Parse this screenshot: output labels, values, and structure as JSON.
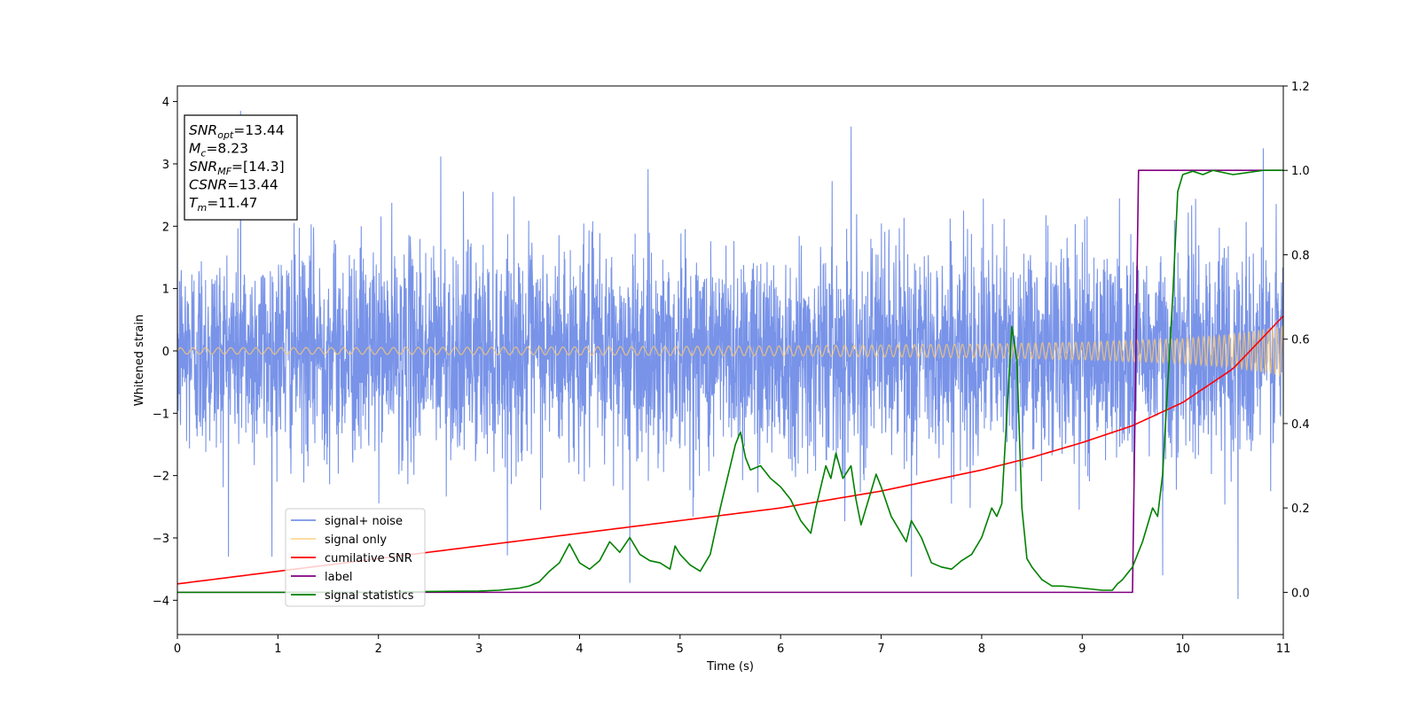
{
  "chart_data": {
    "type": "line",
    "xlabel": "Time (s)",
    "ylabel": "Whitened strain",
    "xlim": [
      0,
      11
    ],
    "ylim": [
      -4.55,
      4.25
    ],
    "ylim_right": [
      -0.1,
      1.2
    ],
    "xticks": [
      0,
      1,
      2,
      3,
      4,
      5,
      6,
      7,
      8,
      9,
      10,
      11
    ],
    "yticks": [
      -4,
      -3,
      -2,
      -1,
      0,
      1,
      2,
      3,
      4
    ],
    "yticks_right": [
      0.0,
      0.2,
      0.4,
      0.6,
      0.8,
      1.0,
      1.2
    ],
    "grid": false,
    "legend_position": "lower-left",
    "annotation": {
      "lines": [
        {
          "math": "SNR",
          "sub": "opt",
          "rest": "=13.44"
        },
        {
          "math": "M",
          "sub": "c",
          "rest": "=8.23"
        },
        {
          "math": "SNR",
          "sub": "MF",
          "rest": "=[14.3]"
        },
        {
          "math": "CSNR",
          "sub": "",
          "rest": "=13.44"
        },
        {
          "math": "T",
          "sub": "m",
          "rest": "=11.47"
        }
      ]
    },
    "series": [
      {
        "name": "signal+ noise",
        "axis": "left",
        "color": "#7893e8",
        "noise_sigma": 0.85,
        "spikes": [
          [
            0.63,
            3.85
          ],
          [
            6.7,
            3.6
          ],
          [
            4.5,
            -3.72
          ],
          [
            10.55,
            -3.98
          ],
          [
            10.8,
            3.25
          ],
          [
            9.8,
            -3.6
          ],
          [
            7.3,
            -3.62
          ],
          [
            2.62,
            3.12
          ]
        ]
      },
      {
        "name": "signal only",
        "axis": "left",
        "color": "#ffc970",
        "envelope_x": [
          0,
          2,
          4,
          6,
          8,
          9,
          10,
          10.5,
          11
        ],
        "envelope": [
          0.05,
          0.055,
          0.065,
          0.08,
          0.11,
          0.14,
          0.2,
          0.27,
          0.4
        ]
      },
      {
        "name": "cumilative SNR",
        "axis": "right",
        "color": "#ff0000",
        "x": [
          0,
          1,
          2,
          3,
          4,
          5,
          6,
          7,
          8,
          8.5,
          9,
          9.5,
          10,
          10.5,
          11
        ],
        "y": [
          0.02,
          0.05,
          0.08,
          0.11,
          0.14,
          0.17,
          0.2,
          0.24,
          0.29,
          0.32,
          0.355,
          0.395,
          0.45,
          0.53,
          0.655
        ]
      },
      {
        "name": "label",
        "axis": "right",
        "color": "#800080",
        "x": [
          0,
          9.5,
          9.56,
          11
        ],
        "y": [
          0.0,
          0.0,
          1.0,
          1.0
        ]
      },
      {
        "name": "signal statistics",
        "axis": "right",
        "color": "#008000",
        "x": [
          0,
          0.5,
          1,
          1.5,
          2,
          2.5,
          3,
          3.2,
          3.4,
          3.5,
          3.6,
          3.7,
          3.8,
          3.9,
          4.0,
          4.1,
          4.2,
          4.3,
          4.4,
          4.5,
          4.6,
          4.7,
          4.8,
          4.9,
          4.95,
          5.0,
          5.1,
          5.2,
          5.3,
          5.4,
          5.5,
          5.55,
          5.6,
          5.65,
          5.7,
          5.8,
          5.9,
          6.0,
          6.1,
          6.2,
          6.3,
          6.35,
          6.45,
          6.5,
          6.55,
          6.62,
          6.7,
          6.75,
          6.8,
          6.9,
          6.95,
          7.0,
          7.1,
          7.2,
          7.25,
          7.3,
          7.4,
          7.5,
          7.6,
          7.7,
          7.8,
          7.9,
          8.0,
          8.1,
          8.15,
          8.2,
          8.3,
          8.35,
          8.4,
          8.45,
          8.5,
          8.6,
          8.7,
          8.8,
          9.0,
          9.2,
          9.3,
          9.35,
          9.4,
          9.5,
          9.6,
          9.7,
          9.75,
          9.8,
          9.9,
          9.95,
          10.0,
          10.1,
          10.2,
          10.3,
          10.5,
          10.8,
          11.0
        ],
        "y": [
          0.0,
          0.0,
          0.0,
          0.0,
          0.0,
          0.002,
          0.003,
          0.005,
          0.01,
          0.015,
          0.025,
          0.05,
          0.07,
          0.115,
          0.07,
          0.055,
          0.075,
          0.12,
          0.095,
          0.13,
          0.09,
          0.075,
          0.07,
          0.055,
          0.11,
          0.09,
          0.065,
          0.05,
          0.09,
          0.2,
          0.3,
          0.35,
          0.38,
          0.32,
          0.29,
          0.3,
          0.27,
          0.25,
          0.22,
          0.17,
          0.14,
          0.2,
          0.3,
          0.27,
          0.33,
          0.27,
          0.3,
          0.22,
          0.16,
          0.24,
          0.28,
          0.25,
          0.18,
          0.14,
          0.12,
          0.17,
          0.13,
          0.07,
          0.06,
          0.055,
          0.075,
          0.09,
          0.13,
          0.2,
          0.18,
          0.21,
          0.63,
          0.55,
          0.2,
          0.08,
          0.06,
          0.03,
          0.015,
          0.015,
          0.01,
          0.005,
          0.005,
          0.02,
          0.03,
          0.06,
          0.12,
          0.2,
          0.18,
          0.28,
          0.7,
          0.95,
          0.99,
          0.998,
          0.99,
          1.0,
          0.99,
          1.0,
          1.0
        ]
      }
    ]
  }
}
